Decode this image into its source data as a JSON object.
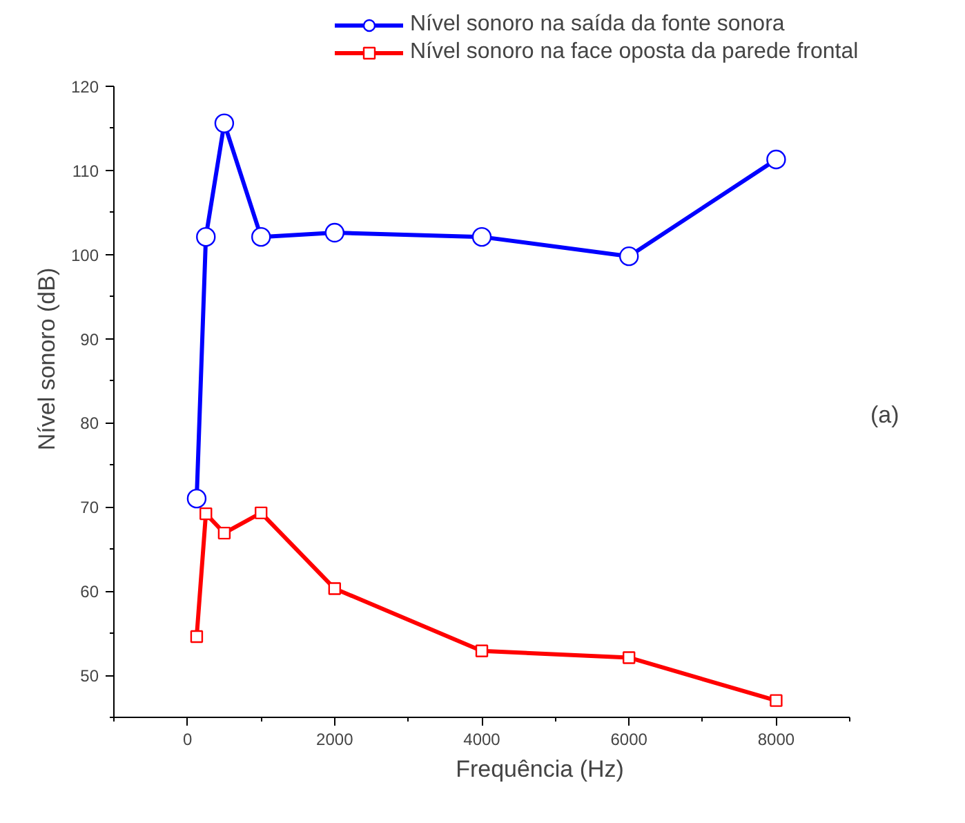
{
  "chart_data": {
    "type": "line",
    "xlabel": "Frequência (Hz)",
    "ylabel": "Nível sonoro (dB)",
    "x": [
      125,
      250,
      500,
      1000,
      2000,
      4000,
      6000,
      8000
    ],
    "series": [
      {
        "name": "Nível sonoro na saída da fonte sonora",
        "color": "#0000ff",
        "marker": "circle",
        "values": [
          71,
          102.1,
          115.6,
          102.1,
          102.6,
          102.1,
          99.8,
          111.3
        ]
      },
      {
        "name": "Nível sonoro na face oposta da parede frontal",
        "color": "#ff0000",
        "marker": "square",
        "values": [
          54.6,
          69.2,
          66.9,
          69.3,
          60.3,
          52.9,
          52.1,
          47
        ]
      }
    ],
    "xlim": [
      -1000,
      9000
    ],
    "xticks": [
      0,
      2000,
      4000,
      6000,
      8000
    ],
    "ylim": [
      45,
      120
    ],
    "yticks": [
      50,
      60,
      70,
      80,
      90,
      100,
      110,
      120
    ],
    "grid": false,
    "legend": "top",
    "annotations": [
      "(a)"
    ]
  }
}
